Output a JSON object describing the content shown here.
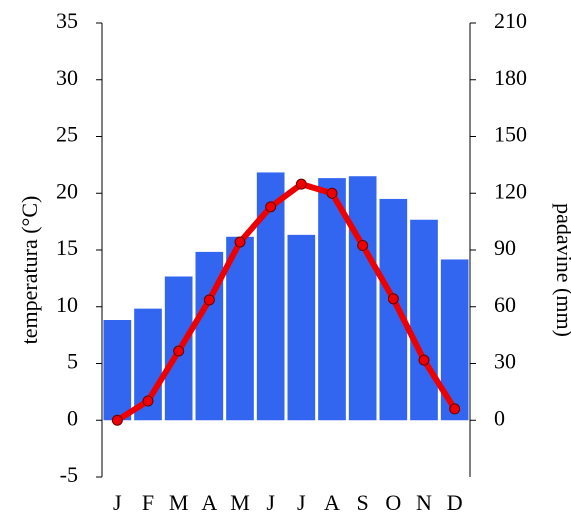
{
  "chart_data": {
    "type": "combo",
    "ylabel": "temperatura (°C)",
    "y2label": "padavine (mm)",
    "categories": [
      "J",
      "F",
      "M",
      "A",
      "M",
      "J",
      "J",
      "A",
      "S",
      "O",
      "N",
      "D"
    ],
    "ylim": [
      -5,
      35
    ],
    "yticks": [
      -5,
      0,
      5,
      10,
      15,
      20,
      25,
      30,
      35
    ],
    "y2lim": [
      -30,
      210
    ],
    "y2ticks": [
      0,
      30,
      60,
      90,
      120,
      150,
      180,
      210
    ],
    "series": [
      {
        "type": "bar",
        "axis": "y2",
        "color": "#3366f0",
        "values": [
          53,
          59,
          76,
          89,
          97,
          131,
          98,
          128,
          129,
          117,
          106,
          85
        ]
      },
      {
        "type": "line",
        "axis": "y",
        "color": "#ee0000",
        "values": [
          0,
          1.7,
          6.1,
          10.6,
          15.7,
          18.8,
          20.8,
          20.0,
          15.4,
          10.7,
          5.3,
          1.0
        ]
      }
    ]
  }
}
